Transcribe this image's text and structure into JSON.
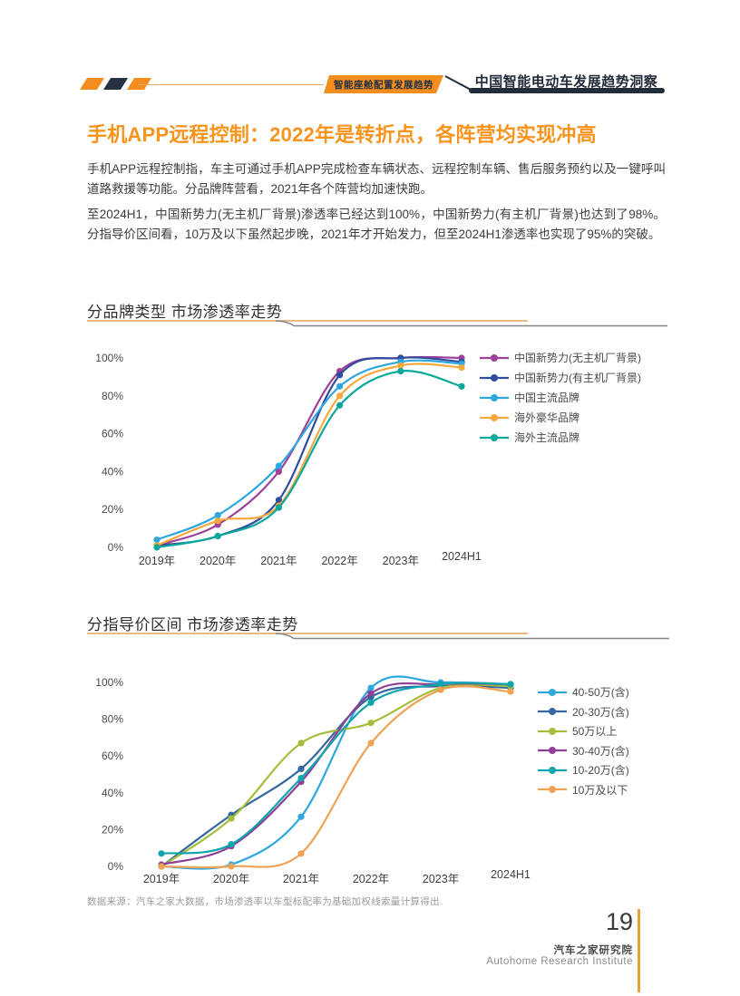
{
  "page": {
    "header": {
      "tag_label": "智能座舱配置发展趋势",
      "report_title": "中国智能电动车发展趋势洞察"
    },
    "title": "手机APP远程控制：2022年是转折点，各阵营均实现冲高",
    "paragraphs": [
      "手机APP远程控制指，车主可通过手机APP完成检查车辆状态、远程控制车辆、售后服务预约以及一键呼叫道路救援等功能。分品牌阵营看，2021年各个阵营均加速快跑。",
      "至2024H1，中国新势力(无主机厂背景)渗透率已经达到100%，中国新势力(有主机厂背景)也达到了98%。分指导价区间看，10万及以下虽然起步晚，2021年才开始发力，但至2024H1渗透率也实现了95%的突破。"
    ],
    "footnote": "数据来源：汽车之家大数据，市场渗透率以车型标配率为基础加权线索量计算得出.",
    "page_number": "19",
    "org_cn": "汽车之家研究院",
    "org_en": "Autohome Research Institute",
    "colors": {
      "accent_orange": "#F7941E",
      "header_navy": "#232C3B",
      "divider_orange": "#E2A360",
      "divider_gray": "#82868B",
      "footer_line_orange": "#E9A23B"
    }
  },
  "chart_data": [
    {
      "type": "line",
      "title": "分品牌类型 市场渗透率走势",
      "categories": [
        "2019年",
        "2020年",
        "2021年",
        "2022年",
        "2023年",
        "2024H1"
      ],
      "yticks": [
        "0%",
        "20%",
        "40%",
        "60%",
        "80%",
        "100%"
      ],
      "ylim": [
        0,
        100
      ],
      "grid": false,
      "legend_position": "right",
      "series": [
        {
          "name": "中国新势力(无主机厂背景)",
          "color": "#9E4198",
          "values": [
            1,
            12,
            40,
            93,
            100,
            100
          ]
        },
        {
          "name": "中国新势力(有主机厂背景)",
          "color": "#2F4C9E",
          "values": [
            1,
            6,
            25,
            91,
            100,
            98
          ]
        },
        {
          "name": "中国主流品牌",
          "color": "#2EA7DF",
          "values": [
            4,
            17,
            43,
            85,
            98,
            97
          ]
        },
        {
          "name": "海外豪华品牌",
          "color": "#F5A83C",
          "values": [
            1,
            14,
            22,
            80,
            96,
            95
          ]
        },
        {
          "name": "海外主流品牌",
          "color": "#0AA89B",
          "values": [
            0,
            6,
            21,
            75,
            93,
            85
          ]
        }
      ]
    },
    {
      "type": "line",
      "title": "分指导价区间 市场渗透率走势",
      "categories": [
        "2019年",
        "2020年",
        "2021年",
        "2022年",
        "2023年",
        "2024H1"
      ],
      "yticks": [
        "0%",
        "20%",
        "40%",
        "60%",
        "80%",
        "100%"
      ],
      "ylim": [
        0,
        100
      ],
      "grid": false,
      "legend_position": "right",
      "series": [
        {
          "name": "40-50万(含)",
          "color": "#2EA7DF",
          "values": [
            0,
            1,
            27,
            97,
            100,
            99
          ]
        },
        {
          "name": "20-30万(含)",
          "color": "#35689F",
          "values": [
            0,
            28,
            53,
            92,
            98,
            97
          ]
        },
        {
          "name": "50万以上",
          "color": "#A4BE3C",
          "values": [
            0,
            26,
            67,
            78,
            97,
            98
          ]
        },
        {
          "name": "30-40万(含)",
          "color": "#8F3F97",
          "values": [
            1,
            11,
            46,
            94,
            99,
            99
          ]
        },
        {
          "name": "10-20万(含)",
          "color": "#0FA5AD",
          "values": [
            7,
            12,
            48,
            89,
            99,
            99
          ]
        },
        {
          "name": "10万及以下",
          "color": "#F0A255",
          "values": [
            0,
            0,
            7,
            67,
            96,
            95
          ]
        }
      ]
    }
  ]
}
